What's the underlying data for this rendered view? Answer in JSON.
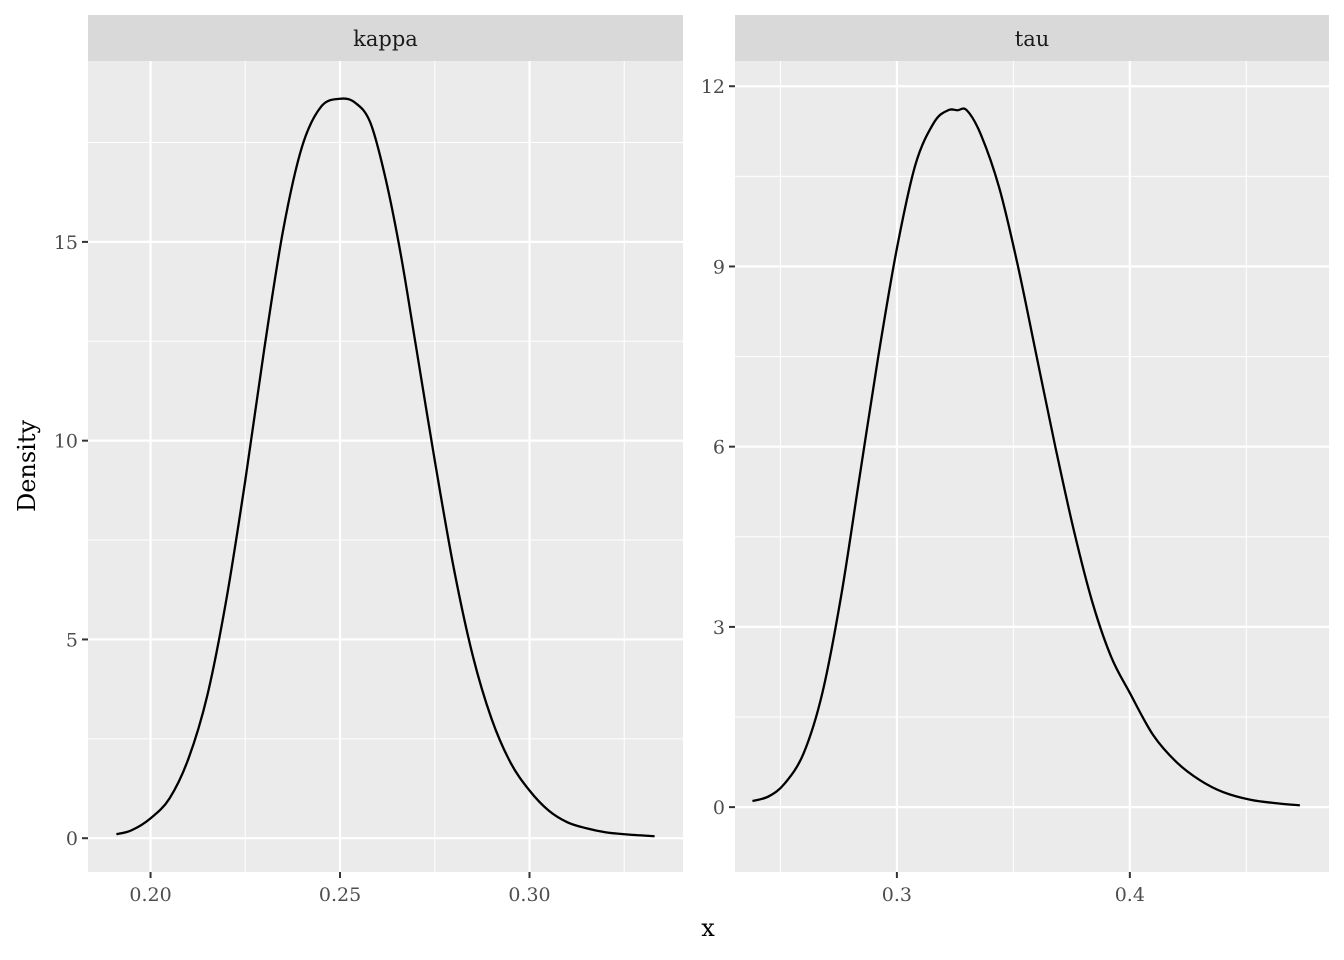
{
  "chart_data": {
    "type": "line",
    "xlabel": "x",
    "ylabel": "Density",
    "grid": true,
    "facets": [
      {
        "name": "kappa",
        "xlim": [
          0.1835,
          0.3405
        ],
        "ylim": [
          -0.85,
          19.55
        ],
        "x_ticks": [
          0.2,
          0.25,
          0.3
        ],
        "x_tick_labels": [
          "0.20",
          "0.25",
          "0.30"
        ],
        "y_ticks": [
          0,
          5,
          10,
          15
        ],
        "y_tick_labels": [
          "0",
          "5",
          "10",
          "15"
        ],
        "series": [
          {
            "x": [
              0.191,
              0.195,
              0.2,
              0.205,
              0.21,
              0.215,
              0.22,
              0.225,
              0.23,
              0.235,
              0.24,
              0.245,
              0.25,
              0.254,
              0.258,
              0.262,
              0.266,
              0.27,
              0.275,
              0.28,
              0.285,
              0.29,
              0.295,
              0.3,
              0.305,
              0.31,
              0.315,
              0.32,
              0.325,
              0.333
            ],
            "y": [
              0.1,
              0.2,
              0.5,
              1.0,
              2.0,
              3.6,
              6.0,
              9.0,
              12.3,
              15.3,
              17.4,
              18.4,
              18.6,
              18.5,
              18.0,
              16.6,
              14.7,
              12.4,
              9.5,
              6.8,
              4.6,
              3.0,
              1.9,
              1.2,
              0.7,
              0.4,
              0.25,
              0.15,
              0.1,
              0.05
            ]
          }
        ]
      },
      {
        "name": "tau",
        "xlim": [
          0.2305,
          0.4855
        ],
        "ylim": [
          -1.08,
          12.42
        ],
        "x_ticks": [
          0.3,
          0.4
        ],
        "x_tick_labels": [
          "0.3",
          "0.4"
        ],
        "y_ticks": [
          0,
          3,
          6,
          9,
          12
        ],
        "y_tick_labels": [
          "0",
          "3",
          "6",
          "9",
          "12"
        ],
        "series": [
          {
            "x": [
              0.238,
              0.245,
              0.252,
              0.26,
              0.268,
              0.276,
              0.284,
              0.292,
              0.3,
              0.308,
              0.316,
              0.322,
              0.326,
              0.33,
              0.336,
              0.344,
              0.352,
              0.36,
              0.368,
              0.376,
              0.384,
              0.392,
              0.4,
              0.41,
              0.42,
              0.43,
              0.44,
              0.452,
              0.464,
              0.473
            ],
            "y": [
              0.1,
              0.18,
              0.4,
              0.9,
              1.9,
              3.5,
              5.5,
              7.5,
              9.3,
              10.7,
              11.4,
              11.6,
              11.6,
              11.6,
              11.2,
              10.3,
              9.0,
              7.5,
              6.0,
              4.6,
              3.4,
              2.5,
              1.9,
              1.2,
              0.75,
              0.45,
              0.25,
              0.12,
              0.06,
              0.03
            ]
          }
        ]
      }
    ]
  }
}
